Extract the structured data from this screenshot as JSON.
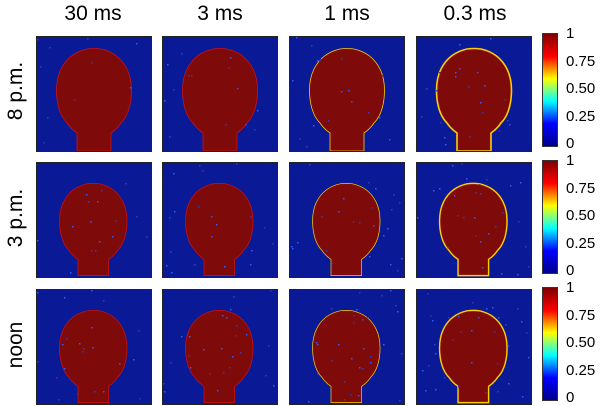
{
  "columns": [
    "30 ms",
    "3 ms",
    "1 ms",
    "0.3 ms"
  ],
  "rows": [
    "8 p.m.",
    "3 p.m.",
    "noon"
  ],
  "colorbar": {
    "ticks": [
      "1",
      "0.75",
      "0.50",
      "0.25",
      "0"
    ],
    "colors": [
      "#7f0000",
      "#ff0000",
      "#ffff00",
      "#00ffff",
      "#0000ff",
      "#00008f"
    ]
  },
  "colors": {
    "background_blue": "#0a1a96",
    "silhouette_red": "#7f0a0a"
  }
}
